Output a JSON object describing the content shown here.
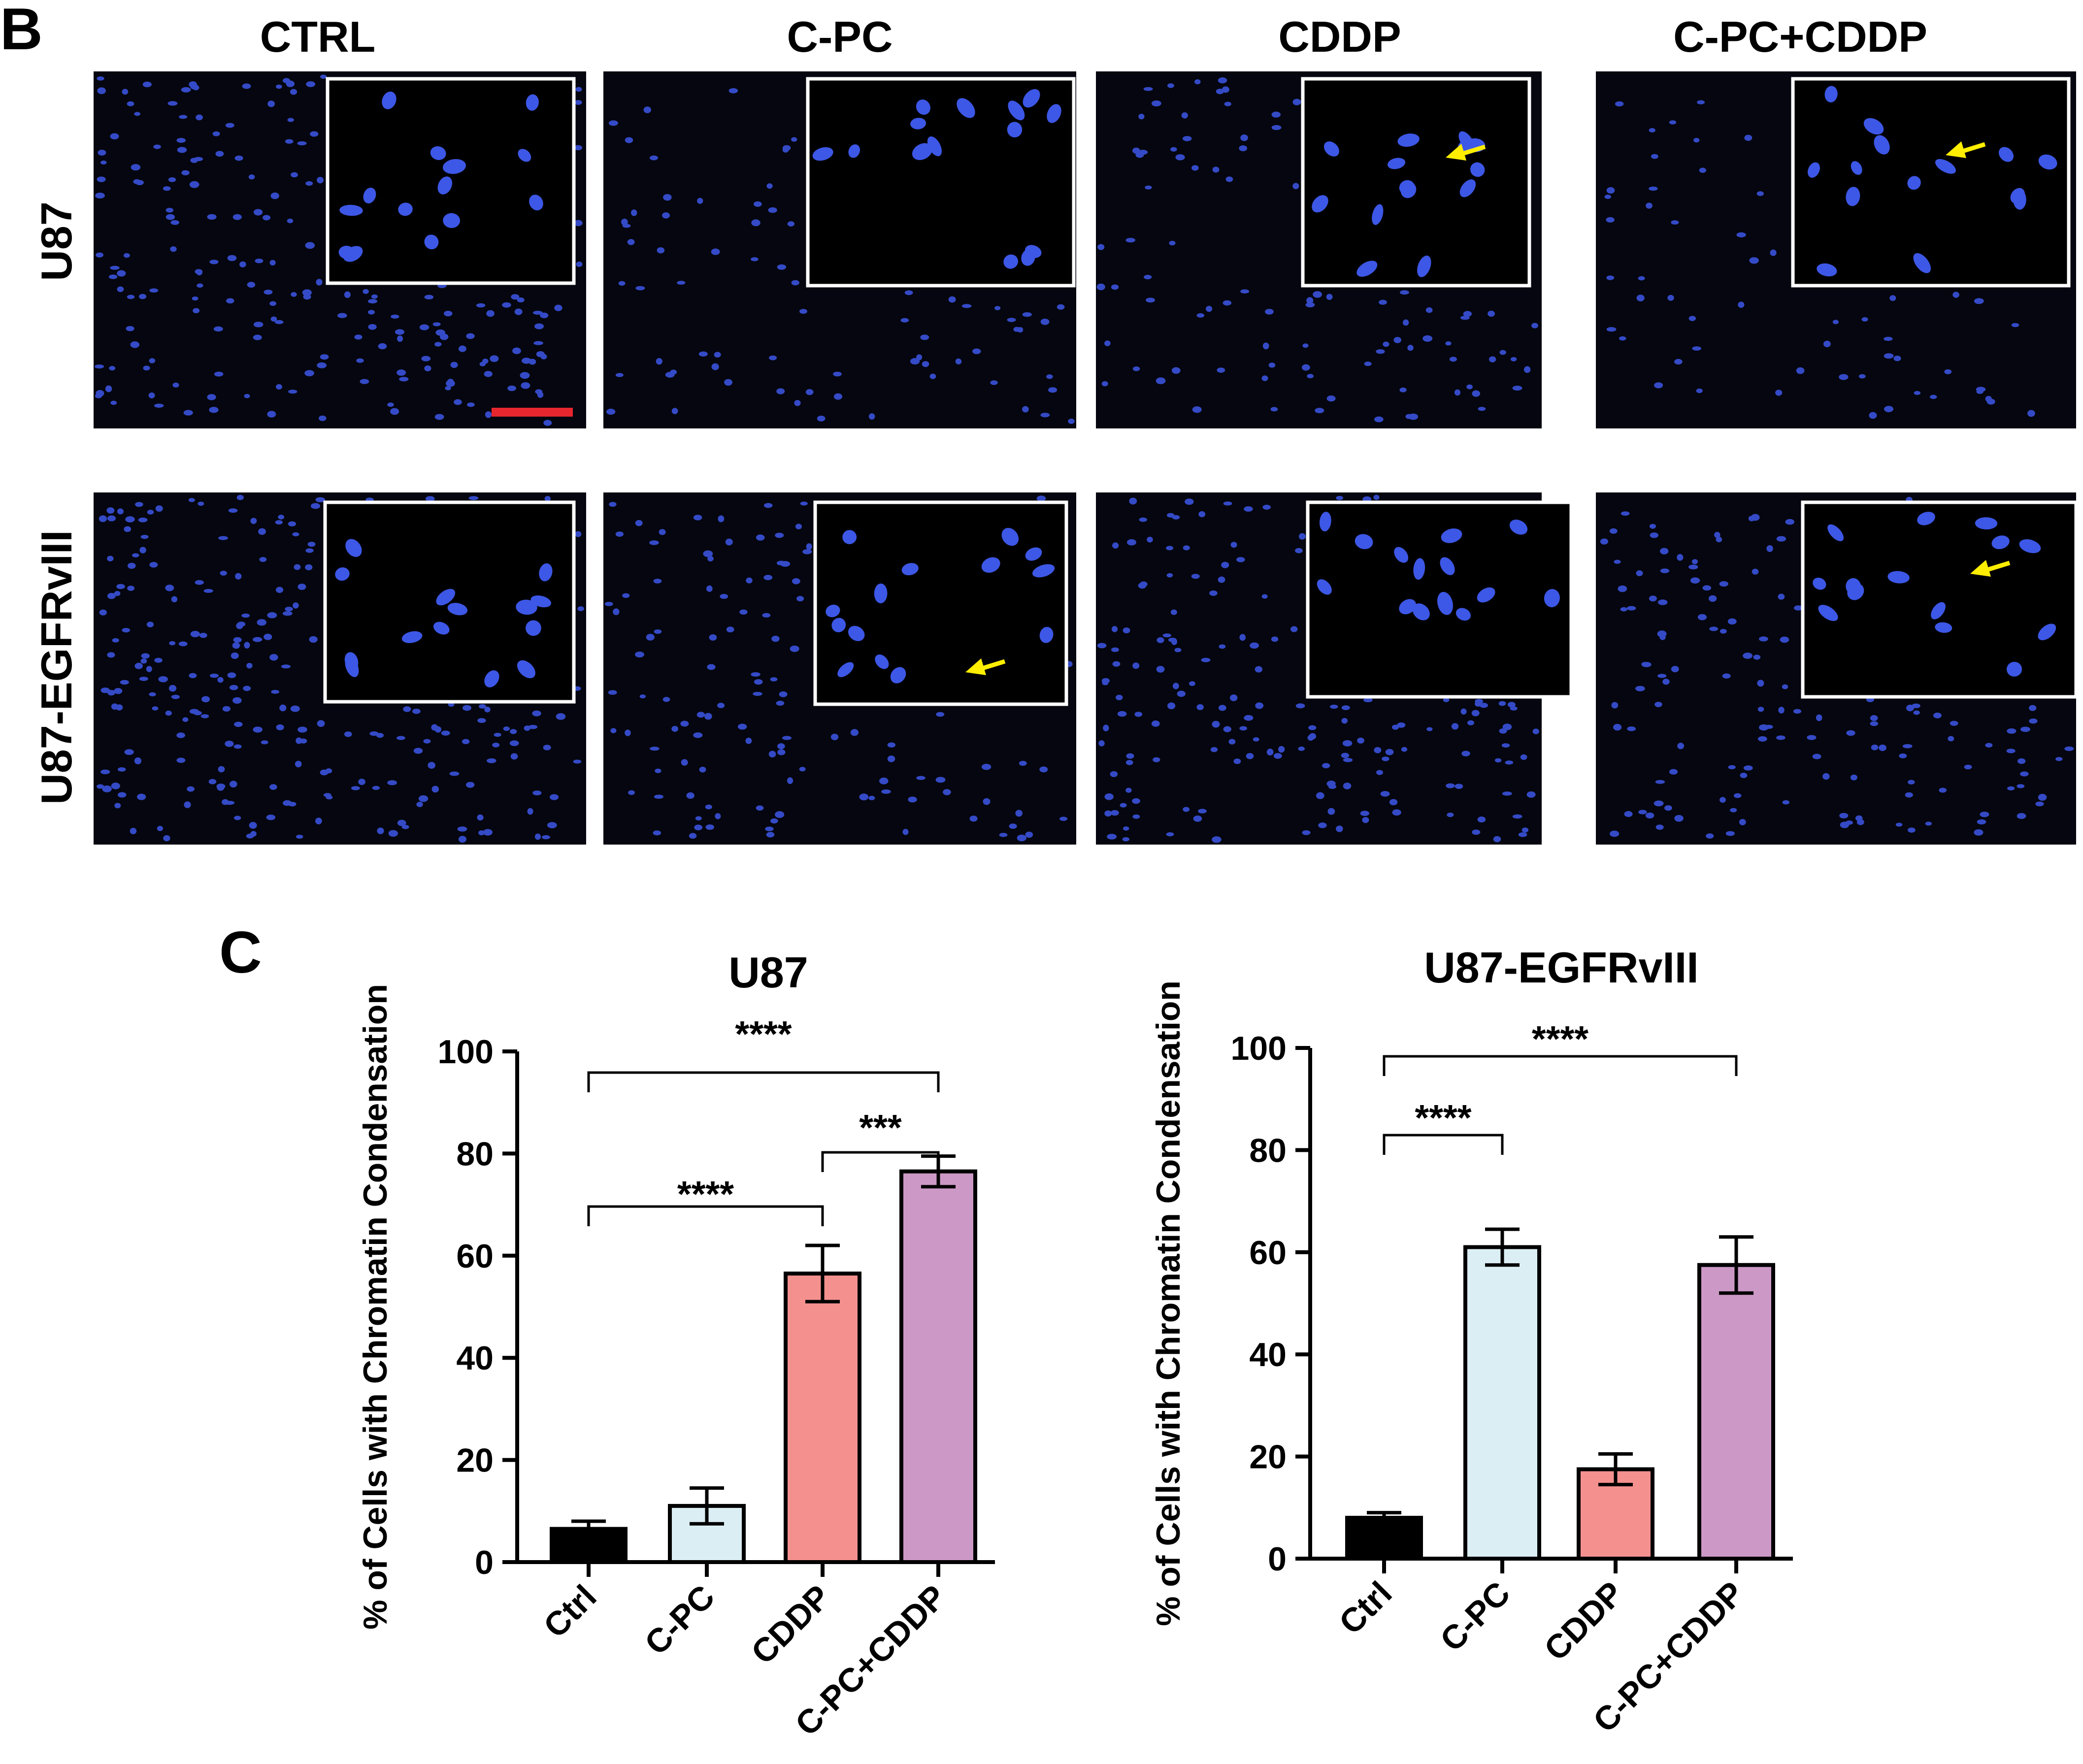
{
  "panel_b": {
    "letter": "B",
    "columns": [
      "CTRL",
      "C-PC",
      "CDDP",
      "C-PC+CDDP"
    ],
    "rows": [
      "U87",
      "U87-EGFRvIII"
    ]
  },
  "panel_c": {
    "letter": "C"
  },
  "colors": {
    "Ctrl": "#000000",
    "C-PC": "#dbeef3",
    "CDDP": "#f4918f",
    "C-PC+CDDP": "#cc99c6",
    "nucleus": "#3d57e6",
    "arrow": "#ffee00",
    "scalebar": "#e8262e"
  },
  "chart_data": [
    {
      "type": "bar",
      "title": "U87",
      "ylabel": "% of Cells with Chromatin Condensation",
      "xlabel": "",
      "categories": [
        "Ctrl",
        "C-PC",
        "CDDP",
        "C-PC+CDDP"
      ],
      "values": [
        6.5,
        11,
        56.5,
        76.5
      ],
      "errors": [
        1.5,
        3.5,
        5.5,
        3
      ],
      "ylim": [
        0,
        100
      ],
      "yticks": [
        "0",
        "20",
        "40",
        "60",
        "80",
        "100"
      ],
      "significance": [
        {
          "from": 0,
          "to": 3,
          "label": "****"
        },
        {
          "from": 2,
          "to": 3,
          "label": "***"
        },
        {
          "from": 0,
          "to": 2,
          "label": "****"
        }
      ]
    },
    {
      "type": "bar",
      "title": "U87-EGFRvIII",
      "ylabel": "% of Cells with Chromatin Condensation",
      "xlabel": "",
      "categories": [
        "Ctrl",
        "C-PC",
        "CDDP",
        "C-PC+CDDP"
      ],
      "values": [
        8,
        61,
        17.5,
        57.5
      ],
      "errors": [
        1,
        3.5,
        3,
        5.5
      ],
      "ylim": [
        0,
        100
      ],
      "yticks": [
        "0",
        "20",
        "40",
        "60",
        "80",
        "100"
      ],
      "significance": [
        {
          "from": 0,
          "to": 3,
          "label": "****"
        },
        {
          "from": 0,
          "to": 1,
          "label": "****"
        }
      ]
    }
  ]
}
